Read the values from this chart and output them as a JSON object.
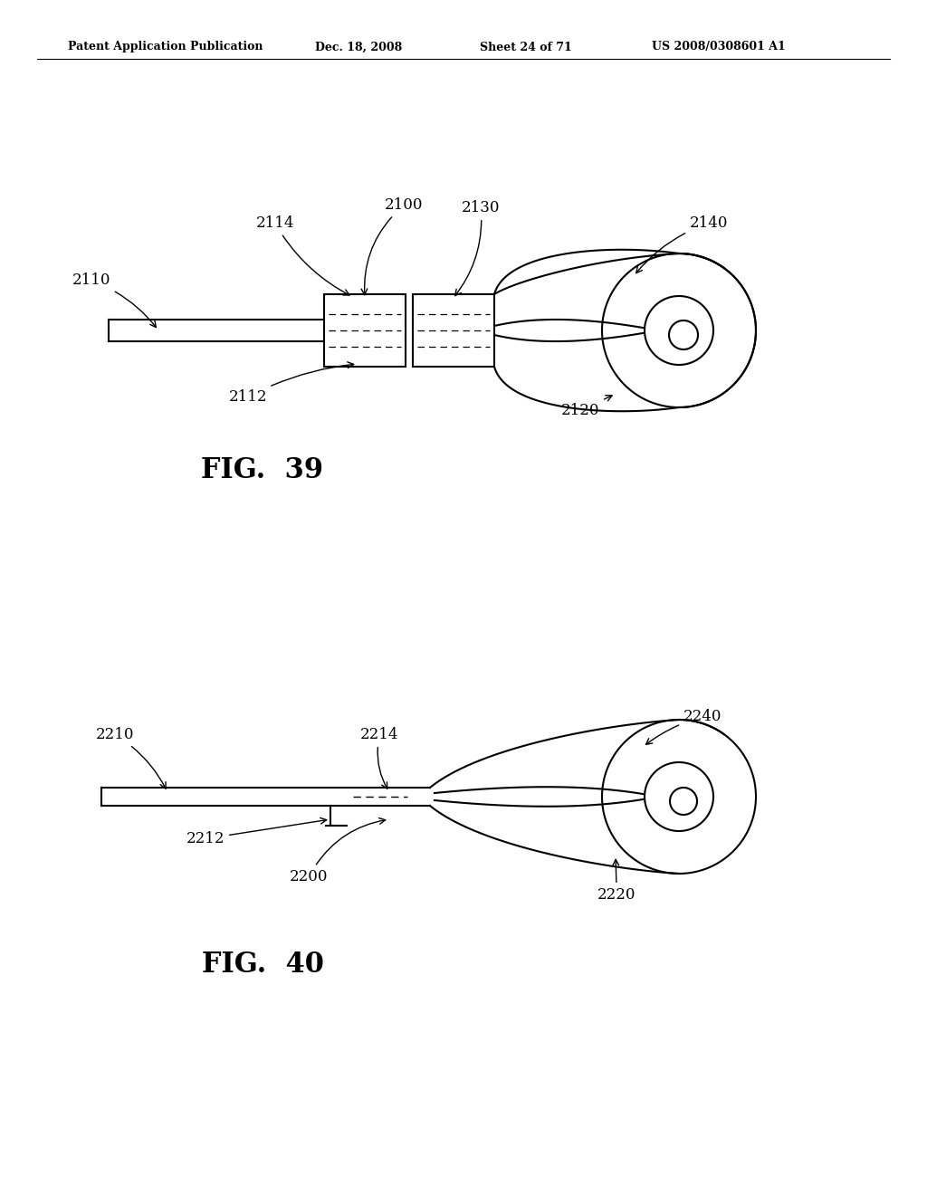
{
  "bg_color": "#ffffff",
  "line_color": "#000000",
  "header_text": "Patent Application Publication",
  "header_date": "Dec. 18, 2008",
  "header_sheet": "Sheet 24 of 71",
  "header_patent": "US 2008/0308601 A1",
  "fig39_label": "FIG.  39",
  "fig40_label": "FIG.  40"
}
